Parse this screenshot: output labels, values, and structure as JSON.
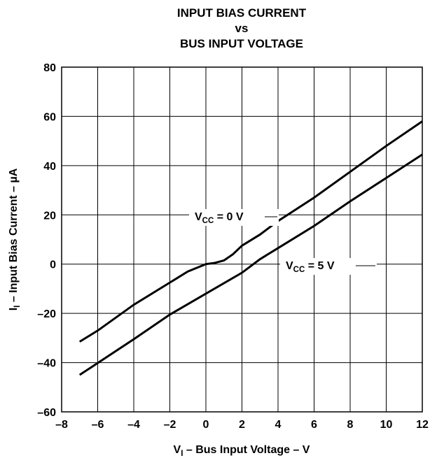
{
  "chart_data": {
    "type": "line",
    "title": [
      "INPUT BIAS CURRENT",
      "vs",
      "BUS INPUT VOLTAGE"
    ],
    "xlabel": [
      "V",
      "I",
      " – Bus Input Voltage – V"
    ],
    "ylabel": [
      "I",
      "I",
      " – Input Bias Current – µA"
    ],
    "xlim": [
      -8,
      12
    ],
    "ylim": [
      -60,
      80
    ],
    "xticks": [
      {
        "value": -8,
        "label": "–8"
      },
      {
        "value": -6,
        "label": "–6"
      },
      {
        "value": -4,
        "label": "–4"
      },
      {
        "value": -2,
        "label": "–2"
      },
      0,
      2,
      4,
      6,
      8,
      10,
      12
    ],
    "yticks": [
      {
        "value": -60,
        "label": "–60"
      },
      {
        "value": -40,
        "label": "–40"
      },
      {
        "value": -20,
        "label": "–20"
      },
      0,
      20,
      40,
      60,
      80
    ],
    "grid": true,
    "series": [
      {
        "label": [
          "V",
          "CC",
          " = 0 V"
        ],
        "color": "#000000",
        "x": [
          -7,
          -6,
          -4,
          -2,
          -1,
          0,
          0.5,
          1,
          1.5,
          2,
          3,
          4,
          6,
          8,
          10,
          12
        ],
        "values": [
          -31.5,
          -27,
          -16.5,
          -7.5,
          -3,
          0,
          0.5,
          1.5,
          4,
          7.5,
          12,
          17.5,
          27,
          37.5,
          48,
          58
        ]
      },
      {
        "label": [
          "V",
          "CC",
          " = 5 V"
        ],
        "color": "#000000",
        "x": [
          -7,
          -4,
          -2,
          0,
          2,
          3,
          4,
          6,
          8,
          10,
          12
        ],
        "values": [
          -45,
          -30.5,
          -20.5,
          -12,
          -3.5,
          2,
          6.5,
          15.5,
          25.5,
          35,
          44.5
        ]
      }
    ]
  }
}
